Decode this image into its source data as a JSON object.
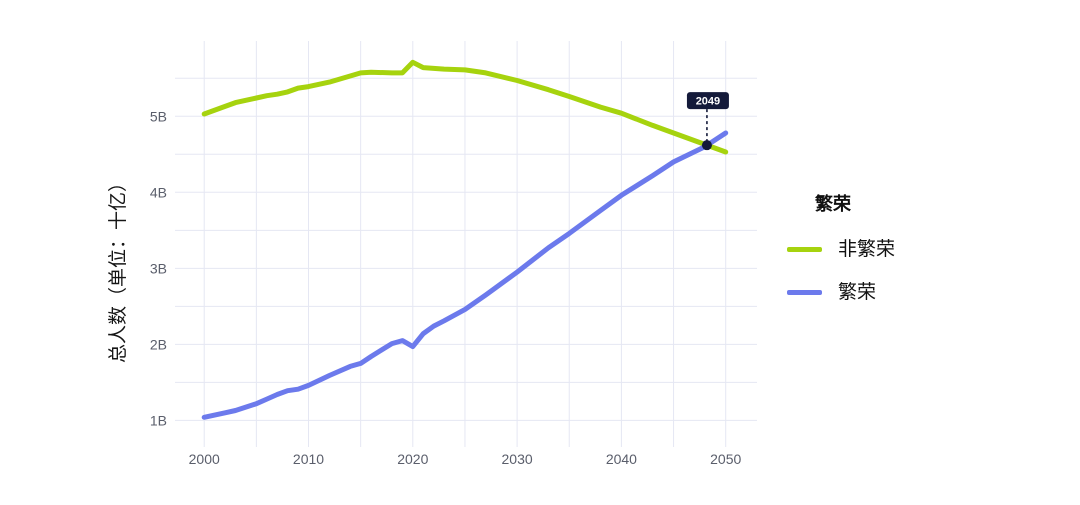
{
  "chart_data": {
    "type": "line",
    "title": "",
    "xlabel": "",
    "ylabel": "总人数（单位：十亿）",
    "x": [
      2000,
      2002,
      2003,
      2005,
      2006,
      2007,
      2008,
      2009,
      2010,
      2012,
      2014,
      2015,
      2016,
      2018,
      2019,
      2020,
      2021,
      2022,
      2023,
      2025,
      2027,
      2030,
      2033,
      2035,
      2038,
      2040,
      2043,
      2045,
      2048,
      2050
    ],
    "series": [
      {
        "name": "非繁荣",
        "color": "#a6d30e",
        "values": [
          5.03,
          5.13,
          5.18,
          5.24,
          5.27,
          5.29,
          5.32,
          5.37,
          5.39,
          5.45,
          5.53,
          5.57,
          5.58,
          5.57,
          5.57,
          5.71,
          5.64,
          5.63,
          5.62,
          5.61,
          5.57,
          5.47,
          5.35,
          5.26,
          5.12,
          5.04,
          4.88,
          4.78,
          4.63,
          4.53
        ]
      },
      {
        "name": "繁荣",
        "color": "#6c7aec",
        "values": [
          1.04,
          1.1,
          1.13,
          1.22,
          1.28,
          1.34,
          1.39,
          1.41,
          1.46,
          1.59,
          1.71,
          1.75,
          1.84,
          2.01,
          2.05,
          1.97,
          2.14,
          2.24,
          2.31,
          2.46,
          2.65,
          2.95,
          3.27,
          3.46,
          3.76,
          3.96,
          4.22,
          4.4,
          4.6,
          4.78
        ]
      }
    ],
    "xlim": [
      1997.2,
      2053
    ],
    "ylim": [
      0.65,
      5.99
    ],
    "x_ticks": [
      2000,
      2010,
      2020,
      2030,
      2040,
      2050
    ],
    "x_tick_labels": [
      "2000",
      "2010",
      "2020",
      "2030",
      "2040",
      "2050"
    ],
    "y_ticks": [
      1,
      2,
      3,
      4,
      5
    ],
    "y_tick_labels": [
      "1B",
      "2B",
      "3B",
      "4B",
      "5B"
    ],
    "grid": true,
    "x_grid_step": 5,
    "y_grid_step": 0.5,
    "legend": {
      "title": "繁荣",
      "position": "right"
    },
    "annotations": [
      {
        "label": "2049",
        "x": 2048.2,
        "y": 4.62
      }
    ],
    "colors": {
      "background": "#ffffff",
      "grid": "#e5e7f3",
      "annotation": "#141a3a"
    }
  }
}
